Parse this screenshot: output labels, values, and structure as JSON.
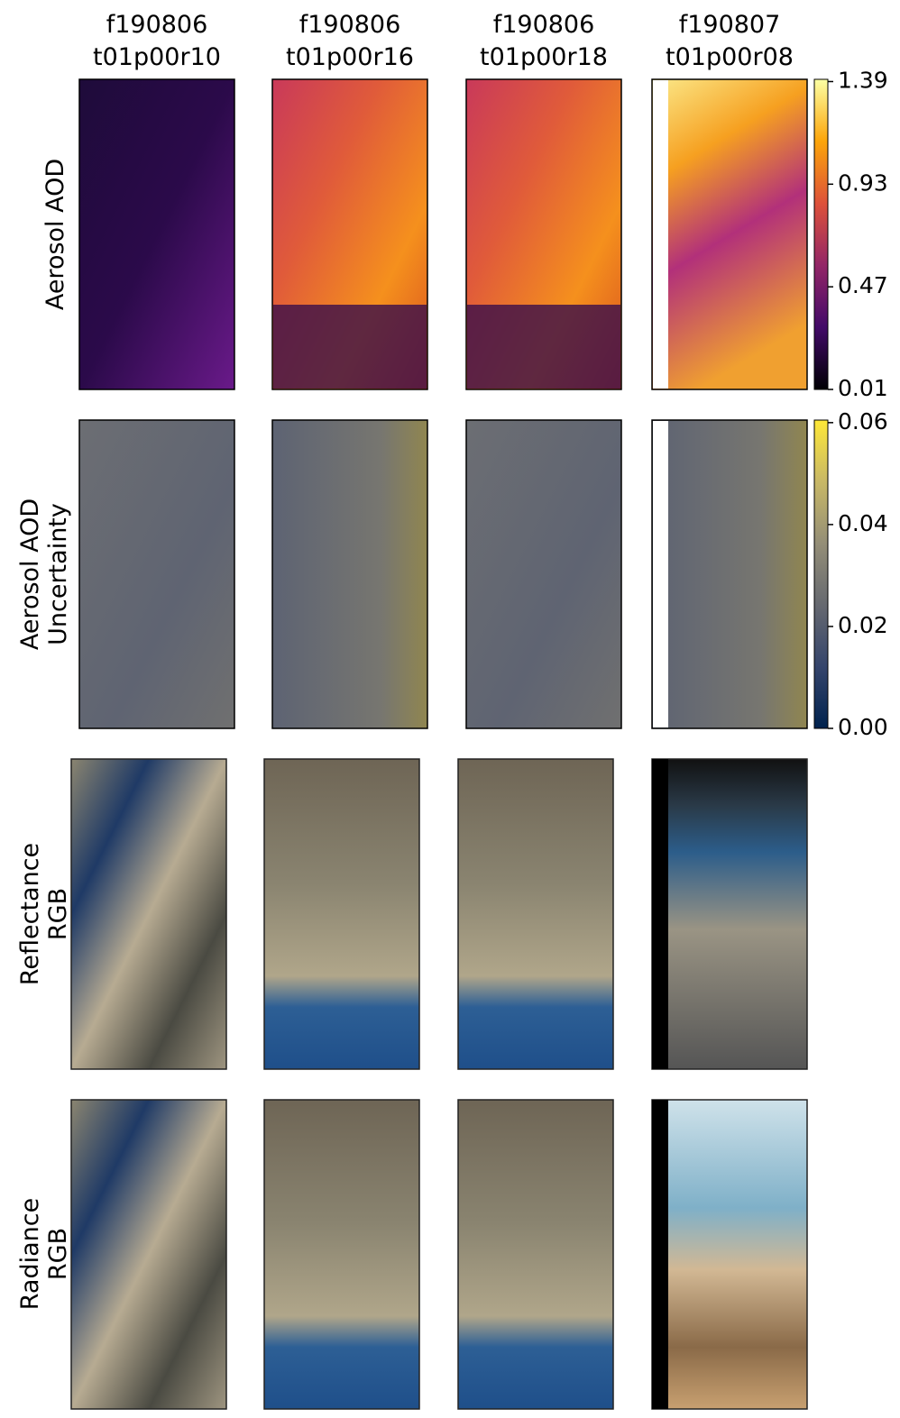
{
  "columns": [
    {
      "line1": "f190806",
      "line2": "t01p00r10"
    },
    {
      "line1": "f190806",
      "line2": "t01p00r16"
    },
    {
      "line1": "f190806",
      "line2": "t01p00r18"
    },
    {
      "line1": "f190807",
      "line2": "t01p00r08"
    }
  ],
  "rows": [
    {
      "label": [
        "Aerosol AOD"
      ]
    },
    {
      "label": [
        "Aerosol AOD",
        "Uncertainty"
      ]
    },
    {
      "label": [
        "Reflectance",
        "RGB"
      ]
    },
    {
      "label": [
        "Radiance",
        "RGB"
      ]
    }
  ],
  "colorbars": [
    {
      "colormap": "inferno",
      "lim": [
        0.01,
        1.4
      ],
      "ticks": [
        0.01,
        0.47,
        0.93,
        1.39
      ]
    },
    {
      "colormap": "cividis",
      "lim": [
        0,
        0.0605
      ],
      "ticks": [
        {
          "value": 0,
          "label": "0.00"
        },
        0.02,
        0.04,
        0.06
      ]
    }
  ]
}
